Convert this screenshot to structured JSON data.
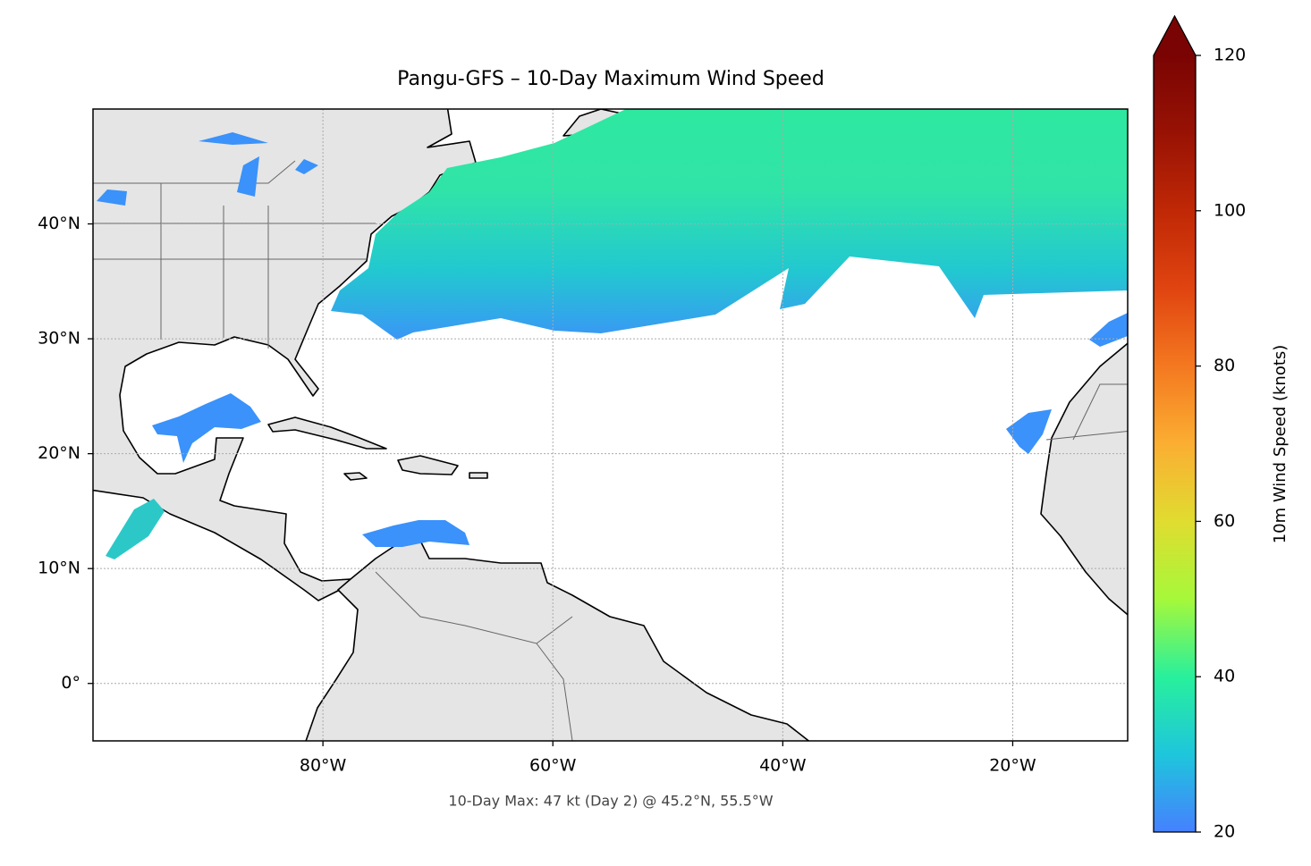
{
  "chart_data": {
    "type": "map",
    "title": "Pangu-GFS – 10-Day Maximum Wind Speed",
    "annotation": "10-Day Max: 47 kt (Day 2) @ 45.2°N, 55.5°W",
    "xlim": [
      -100,
      -10
    ],
    "ylim": [
      -5,
      50
    ],
    "xticks": [
      {
        "value": -80,
        "label": "80°W"
      },
      {
        "value": -60,
        "label": "60°W"
      },
      {
        "value": -40,
        "label": "40°W"
      },
      {
        "value": -20,
        "label": "20°W"
      }
    ],
    "yticks": [
      {
        "value": 0,
        "label": "0°"
      },
      {
        "value": 10,
        "label": "10°N"
      },
      {
        "value": 20,
        "label": "20°N"
      },
      {
        "value": 30,
        "label": "30°N"
      },
      {
        "value": 40,
        "label": "40°N"
      }
    ],
    "grid": true,
    "colorbar": {
      "label": "10m Wind Speed (knots)",
      "lim": [
        20,
        120
      ],
      "ticks": [
        20,
        40,
        60,
        80,
        100,
        120
      ],
      "colors": [
        "#4680ff",
        "#1ec6dc",
        "#28f09c",
        "#a6f83a",
        "#e0dc30",
        "#fbae32",
        "#f47820",
        "#e04410",
        "#c02806",
        "#981204",
        "#7a0403"
      ],
      "extend": "max"
    }
  }
}
